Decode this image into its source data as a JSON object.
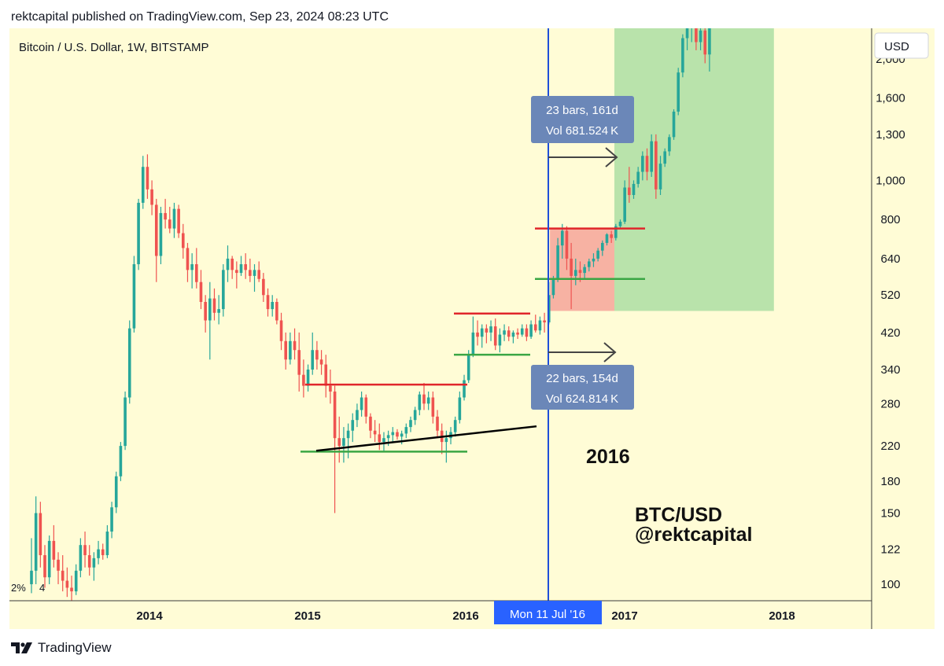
{
  "header": {
    "published": "rektcapital published on TradingView.com, Sep 23, 2024 08:23 UTC"
  },
  "colors": {
    "background": "#fffcd6",
    "up": "#26a69a",
    "down": "#ef5350",
    "resistance": "#e0262b",
    "support": "#3aa644",
    "trendline": "#000000",
    "red_zone": "#f6a49a",
    "green_zone": "#a7dca0",
    "cursor_line": "#1f4fd9",
    "label_box": "#6b87b8",
    "date_label": "#2962ff"
  },
  "chart_data": {
    "type": "candlestick",
    "title": "Bitcoin / U.S. Dollar, 1W, BITSTAMP",
    "currency_button": "USD",
    "scale": "log",
    "ylim": [
      91,
      2380
    ],
    "y_ticks": [
      "2,000",
      "1,600",
      "1,300",
      "1,000",
      "800",
      "640",
      "520",
      "420",
      "340",
      "280",
      "220",
      "180",
      "150",
      "122",
      "100"
    ],
    "x_ticks": [
      "2014",
      "2015",
      "2016",
      "2017",
      "2018"
    ],
    "percent_label": "2%",
    "percent_label_2": "4",
    "cursor_date": "Mon 11 Jul '16",
    "measures": [
      {
        "bars_line": "23 bars, 161d",
        "vol_line": "Vol 681.524 K"
      },
      {
        "bars_line": "22 bars, 154d",
        "vol_line": "Vol 624.814 K"
      }
    ],
    "annotations": {
      "year": "2016",
      "pair": "BTC/USD",
      "handle": "@rektcapital"
    },
    "levels": {
      "resistance_2015": 312,
      "support_2015": 213,
      "resistance_2016a": 468,
      "support_2016a": 370,
      "resistance_2016b": 760,
      "support_2016b": 570
    },
    "candles": [
      [
        100,
        130,
        95,
        108
      ],
      [
        108,
        165,
        100,
        150
      ],
      [
        150,
        160,
        110,
        118
      ],
      [
        118,
        125,
        98,
        104
      ],
      [
        104,
        132,
        100,
        128
      ],
      [
        128,
        140,
        110,
        115
      ],
      [
        115,
        120,
        100,
        108
      ],
      [
        108,
        118,
        96,
        102
      ],
      [
        102,
        110,
        93,
        98
      ],
      [
        98,
        105,
        91,
        96
      ],
      [
        96,
        112,
        94,
        108
      ],
      [
        108,
        130,
        104,
        125
      ],
      [
        125,
        135,
        110,
        118
      ],
      [
        118,
        125,
        105,
        110
      ],
      [
        110,
        120,
        102,
        116
      ],
      [
        116,
        128,
        112,
        122
      ],
      [
        122,
        126,
        115,
        118
      ],
      [
        118,
        140,
        116,
        135
      ],
      [
        135,
        160,
        130,
        155
      ],
      [
        155,
        190,
        150,
        185
      ],
      [
        185,
        225,
        180,
        220
      ],
      [
        220,
        300,
        215,
        290
      ],
      [
        290,
        450,
        280,
        430
      ],
      [
        430,
        650,
        420,
        620
      ],
      [
        620,
        900,
        600,
        880
      ],
      [
        880,
        1150,
        850,
        1080
      ],
      [
        1080,
        1160,
        900,
        950
      ],
      [
        950,
        1000,
        820,
        870
      ],
      [
        870,
        900,
        560,
        650
      ],
      [
        650,
        860,
        620,
        830
      ],
      [
        830,
        900,
        760,
        800
      ],
      [
        800,
        860,
        740,
        760
      ],
      [
        760,
        880,
        720,
        850
      ],
      [
        850,
        870,
        720,
        740
      ],
      [
        740,
        780,
        640,
        680
      ],
      [
        680,
        700,
        560,
        600
      ],
      [
        600,
        660,
        540,
        620
      ],
      [
        620,
        680,
        540,
        560
      ],
      [
        560,
        600,
        480,
        500
      ],
      [
        500,
        520,
        420,
        450
      ],
      [
        450,
        560,
        360,
        510
      ],
      [
        510,
        540,
        450,
        470
      ],
      [
        470,
        520,
        440,
        480
      ],
      [
        480,
        620,
        460,
        600
      ],
      [
        600,
        690,
        560,
        640
      ],
      [
        640,
        650,
        570,
        600
      ],
      [
        600,
        630,
        540,
        590
      ],
      [
        590,
        650,
        580,
        620
      ],
      [
        620,
        660,
        570,
        600
      ],
      [
        600,
        640,
        560,
        580
      ],
      [
        580,
        620,
        530,
        600
      ],
      [
        600,
        630,
        560,
        570
      ],
      [
        570,
        590,
        500,
        520
      ],
      [
        520,
        540,
        460,
        480
      ],
      [
        480,
        520,
        460,
        500
      ],
      [
        500,
        510,
        440,
        450
      ],
      [
        450,
        470,
        380,
        400
      ],
      [
        400,
        420,
        340,
        360
      ],
      [
        360,
        420,
        350,
        400
      ],
      [
        400,
        430,
        360,
        380
      ],
      [
        380,
        420,
        300,
        330
      ],
      [
        330,
        360,
        290,
        310
      ],
      [
        310,
        350,
        300,
        340
      ],
      [
        340,
        420,
        330,
        380
      ],
      [
        380,
        400,
        340,
        360
      ],
      [
        360,
        380,
        330,
        350
      ],
      [
        350,
        370,
        290,
        310
      ],
      [
        310,
        340,
        280,
        300
      ],
      [
        300,
        310,
        150,
        230
      ],
      [
        230,
        260,
        200,
        220
      ],
      [
        220,
        245,
        200,
        230
      ],
      [
        230,
        250,
        205,
        240
      ],
      [
        240,
        265,
        225,
        255
      ],
      [
        255,
        280,
        245,
        270
      ],
      [
        270,
        300,
        260,
        290
      ],
      [
        290,
        295,
        250,
        260
      ],
      [
        260,
        265,
        230,
        240
      ],
      [
        240,
        255,
        225,
        235
      ],
      [
        235,
        250,
        215,
        225
      ],
      [
        225,
        238,
        212,
        230
      ],
      [
        230,
        240,
        220,
        234
      ],
      [
        234,
        245,
        225,
        238
      ],
      [
        238,
        242,
        228,
        232
      ],
      [
        232,
        240,
        222,
        236
      ],
      [
        236,
        250,
        230,
        245
      ],
      [
        245,
        260,
        238,
        255
      ],
      [
        255,
        275,
        248,
        270
      ],
      [
        270,
        300,
        262,
        295
      ],
      [
        295,
        315,
        270,
        280
      ],
      [
        280,
        300,
        270,
        290
      ],
      [
        290,
        300,
        250,
        260
      ],
      [
        260,
        270,
        230,
        240
      ],
      [
        240,
        250,
        210,
        225
      ],
      [
        225,
        240,
        200,
        230
      ],
      [
        230,
        245,
        222,
        238
      ],
      [
        238,
        260,
        232,
        255
      ],
      [
        255,
        300,
        250,
        290
      ],
      [
        290,
        330,
        285,
        320
      ],
      [
        320,
        380,
        315,
        370
      ],
      [
        370,
        460,
        365,
        420
      ],
      [
        420,
        450,
        390,
        410
      ],
      [
        410,
        440,
        385,
        430
      ],
      [
        430,
        440,
        395,
        420
      ],
      [
        420,
        450,
        400,
        435
      ],
      [
        435,
        455,
        380,
        390
      ],
      [
        390,
        430,
        375,
        415
      ],
      [
        415,
        440,
        400,
        425
      ],
      [
        425,
        435,
        400,
        410
      ],
      [
        410,
        425,
        395,
        420
      ],
      [
        420,
        430,
        405,
        415
      ],
      [
        415,
        440,
        410,
        430
      ],
      [
        430,
        440,
        400,
        410
      ],
      [
        410,
        450,
        405,
        440
      ],
      [
        440,
        465,
        420,
        425
      ],
      [
        425,
        460,
        415,
        450
      ],
      [
        450,
        470,
        420,
        445
      ],
      [
        445,
        560,
        440,
        520
      ],
      [
        520,
        580,
        510,
        570
      ],
      [
        570,
        720,
        560,
        690
      ],
      [
        690,
        780,
        640,
        750
      ],
      [
        750,
        770,
        600,
        640
      ],
      [
        640,
        700,
        480,
        580
      ],
      [
        580,
        640,
        550,
        600
      ],
      [
        600,
        630,
        560,
        590
      ],
      [
        590,
        620,
        570,
        610
      ],
      [
        610,
        640,
        595,
        630
      ],
      [
        630,
        660,
        610,
        640
      ],
      [
        640,
        680,
        630,
        670
      ],
      [
        670,
        710,
        650,
        700
      ],
      [
        700,
        740,
        690,
        735
      ],
      [
        735,
        750,
        700,
        720
      ],
      [
        720,
        780,
        710,
        770
      ],
      [
        770,
        800,
        760,
        790
      ],
      [
        790,
        1000,
        780,
        960
      ],
      [
        960,
        1080,
        880,
        920
      ],
      [
        920,
        1000,
        900,
        980
      ],
      [
        980,
        1080,
        960,
        1050
      ],
      [
        1050,
        1180,
        1000,
        1150
      ],
      [
        1150,
        1200,
        1000,
        1050
      ],
      [
        1050,
        1300,
        1020,
        1250
      ],
      [
        1250,
        1300,
        900,
        950
      ],
      [
        950,
        1150,
        920,
        1100
      ],
      [
        1100,
        1200,
        1080,
        1180
      ],
      [
        1180,
        1300,
        1150,
        1280
      ],
      [
        1280,
        1500,
        1260,
        1480
      ],
      [
        1480,
        1900,
        1450,
        1850
      ],
      [
        1850,
        2300,
        1800,
        2250
      ],
      [
        2250,
        2500,
        2100,
        2400
      ],
      [
        2400,
        2600,
        2200,
        2450
      ],
      [
        2450,
        2550,
        2100,
        2200
      ],
      [
        2200,
        2400,
        2100,
        2350
      ],
      [
        2350,
        2500,
        1950,
        2050
      ],
      [
        2050,
        2700,
        1860,
        2500
      ]
    ]
  }
}
